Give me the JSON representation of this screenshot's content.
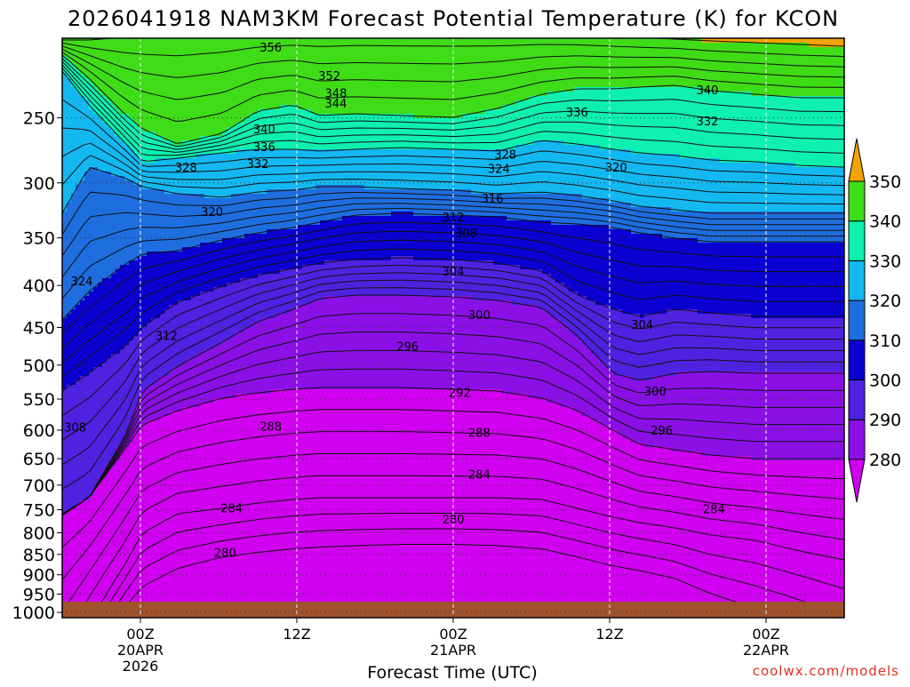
{
  "chart_data": {
    "type": "heatmap",
    "title": "2026041918 NAM3KM Forecast Potential Temperature (K) for KCON",
    "xlabel": "Forecast Time (UTC)",
    "ylabel": "",
    "y_ticks": [
      250,
      300,
      350,
      400,
      450,
      500,
      550,
      600,
      650,
      700,
      750,
      800,
      850,
      900,
      950,
      1000
    ],
    "x_ticks": [
      {
        "hour": 0,
        "lines": [
          "00Z",
          "20APR",
          "2026"
        ]
      },
      {
        "hour": 12,
        "lines": [
          "12Z"
        ]
      },
      {
        "hour": 24,
        "lines": [
          "00Z",
          "21APR"
        ]
      },
      {
        "hour": 36,
        "lines": [
          "12Z"
        ]
      },
      {
        "hour": 48,
        "lines": [
          "00Z",
          "22APR"
        ]
      }
    ],
    "x_range_hours": [
      -6,
      54
    ],
    "y_range_hpa": [
      200,
      1015
    ],
    "colorbar": {
      "boundaries": [
        280,
        290,
        300,
        310,
        320,
        330,
        340,
        350
      ],
      "labels": [
        "280",
        "290",
        "300",
        "310",
        "320",
        "330",
        "340",
        "350"
      ],
      "colors": [
        "#d000f0",
        "#8a10e6",
        "#4f22e2",
        "#0a00d2",
        "#1e6ee0",
        "#13b8f0",
        "#0ef0b0",
        "#3fdc18",
        "#e8f000",
        "#f4a400"
      ],
      "extend": "both"
    },
    "contour_interval_K": 2,
    "contour_labels": [
      {
        "text": "356",
        "hour": 10,
        "p": 205
      },
      {
        "text": "352",
        "hour": 14.5,
        "p": 222
      },
      {
        "text": "348",
        "hour": 15,
        "p": 233
      },
      {
        "text": "344",
        "hour": 15,
        "p": 240
      },
      {
        "text": "340",
        "hour": 43.5,
        "p": 231
      },
      {
        "text": "336",
        "hour": 33.5,
        "p": 246
      },
      {
        "text": "332",
        "hour": 43.5,
        "p": 252
      },
      {
        "text": "340",
        "hour": 9.5,
        "p": 258
      },
      {
        "text": "336",
        "hour": 9.5,
        "p": 271
      },
      {
        "text": "332",
        "hour": 9,
        "p": 284
      },
      {
        "text": "328",
        "hour": 3.5,
        "p": 287
      },
      {
        "text": "328",
        "hour": 28,
        "p": 277
      },
      {
        "text": "324",
        "hour": 27.5,
        "p": 288
      },
      {
        "text": "320",
        "hour": 36.5,
        "p": 287
      },
      {
        "text": "316",
        "hour": 27,
        "p": 313
      },
      {
        "text": "320",
        "hour": 5.5,
        "p": 325
      },
      {
        "text": "312",
        "hour": 24,
        "p": 330
      },
      {
        "text": "308",
        "hour": 25,
        "p": 345
      },
      {
        "text": "304",
        "hour": 24,
        "p": 384
      },
      {
        "text": "324",
        "hour": -4.5,
        "p": 395
      },
      {
        "text": "300",
        "hour": 26,
        "p": 434
      },
      {
        "text": "304",
        "hour": 38.5,
        "p": 446
      },
      {
        "text": "312",
        "hour": 2,
        "p": 460
      },
      {
        "text": "296",
        "hour": 20.5,
        "p": 474
      },
      {
        "text": "300",
        "hour": 39.5,
        "p": 538
      },
      {
        "text": "292",
        "hour": 24.5,
        "p": 540
      },
      {
        "text": "308",
        "hour": -5,
        "p": 595
      },
      {
        "text": "288",
        "hour": 10,
        "p": 593
      },
      {
        "text": "288",
        "hour": 26,
        "p": 604
      },
      {
        "text": "296",
        "hour": 40,
        "p": 600
      },
      {
        "text": "284",
        "hour": 26,
        "p": 679
      },
      {
        "text": "284",
        "hour": 7,
        "p": 746
      },
      {
        "text": "284",
        "hour": 44,
        "p": 748
      },
      {
        "text": "280",
        "hour": 24,
        "p": 770
      },
      {
        "text": "280",
        "hour": 6.5,
        "p": 845
      }
    ],
    "ground": "surface at ~1000 hPa shaded brown"
  },
  "watermark": "coolwx.com/models"
}
